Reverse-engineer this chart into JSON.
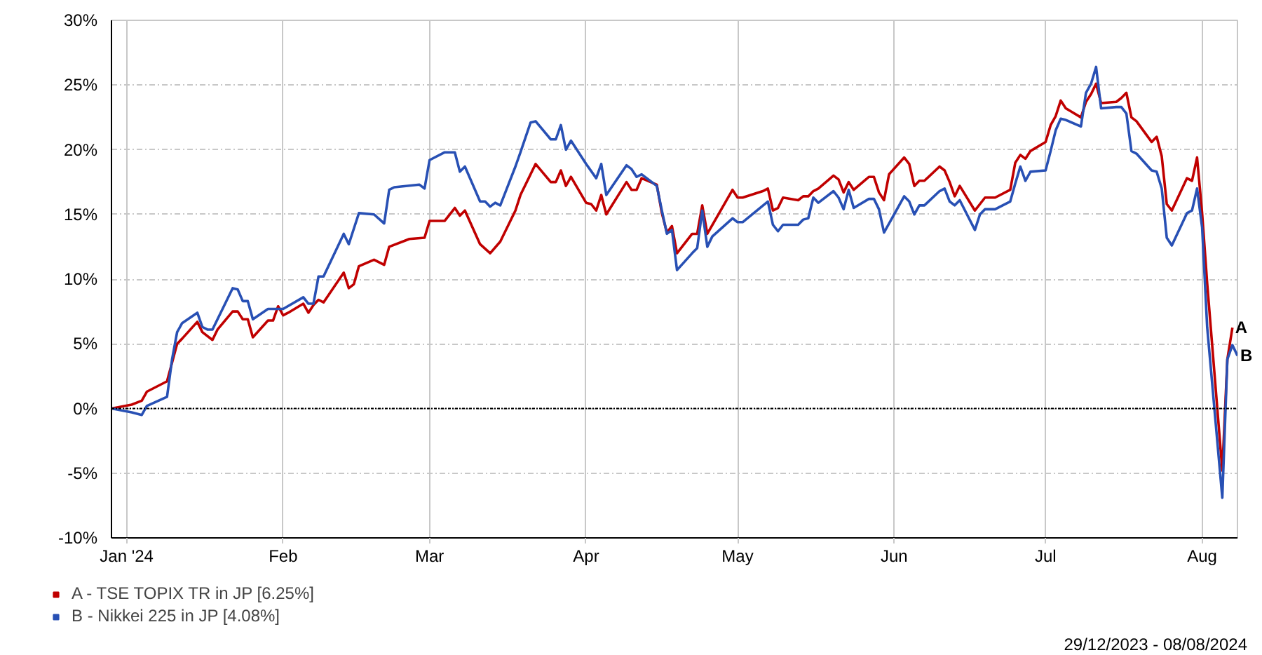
{
  "chart_data": {
    "type": "line",
    "xlim": [
      "2023-12-29",
      "2024-08-08"
    ],
    "ylim": [
      -10,
      30
    ],
    "xticks": [
      {
        "value": "2024-01-01",
        "label": "Jan '24"
      },
      {
        "value": "2024-02-01",
        "label": "Feb"
      },
      {
        "value": "2024-03-01",
        "label": "Mar"
      },
      {
        "value": "2024-04-01",
        "label": "Apr"
      },
      {
        "value": "2024-05-01",
        "label": "May"
      },
      {
        "value": "2024-06-01",
        "label": "Jun"
      },
      {
        "value": "2024-07-01",
        "label": "Jul"
      },
      {
        "value": "2024-08-01",
        "label": "Aug"
      }
    ],
    "yticks": [
      {
        "value": -10,
        "label": "-10%"
      },
      {
        "value": -5,
        "label": "-5%"
      },
      {
        "value": 0,
        "label": "0%"
      },
      {
        "value": 5,
        "label": "5%"
      },
      {
        "value": 10,
        "label": "10%"
      },
      {
        "value": 15,
        "label": "15%"
      },
      {
        "value": 20,
        "label": "20%"
      },
      {
        "value": 25,
        "label": "25%"
      },
      {
        "value": 30,
        "label": "30%"
      }
    ],
    "grid": true,
    "legend": "bottom left",
    "ref_lines": [
      {
        "axis": "y",
        "value": 0,
        "color": "#000000",
        "line_style": "dotted"
      }
    ],
    "annotations": [
      "29/12/2023 - 08/08/2024",
      {
        "text": "A",
        "x": "2024-08-07",
        "y": 6.25
      },
      {
        "text": "B",
        "x": "2024-08-08",
        "y": 4.08
      }
    ],
    "series": [
      {
        "name": "A - TSE TOPIX TR in JP [6.25%]",
        "color": "#c00000",
        "x": [
          "2023-12-29",
          "2024-01-02",
          "2024-01-04",
          "2024-01-05",
          "2024-01-09",
          "2024-01-11",
          "2024-01-12",
          "2024-01-15",
          "2024-01-16",
          "2024-01-18",
          "2024-01-19",
          "2024-01-22",
          "2024-01-23",
          "2024-01-24",
          "2024-01-25",
          "2024-01-26",
          "2024-01-29",
          "2024-01-30",
          "2024-01-31",
          "2024-02-01",
          "2024-02-02",
          "2024-02-05",
          "2024-02-06",
          "2024-02-07",
          "2024-02-08",
          "2024-02-09",
          "2024-02-13",
          "2024-02-14",
          "2024-02-15",
          "2024-02-16",
          "2024-02-19",
          "2024-02-21",
          "2024-02-22",
          "2024-02-26",
          "2024-02-29",
          "2024-03-01",
          "2024-03-04",
          "2024-03-06",
          "2024-03-07",
          "2024-03-08",
          "2024-03-11",
          "2024-03-13",
          "2024-03-15",
          "2024-03-18",
          "2024-03-19",
          "2024-03-21",
          "2024-03-22",
          "2024-03-25",
          "2024-03-26",
          "2024-03-27",
          "2024-03-28",
          "2024-03-29",
          "2024-04-01",
          "2024-04-02",
          "2024-04-03",
          "2024-04-04",
          "2024-04-05",
          "2024-04-09",
          "2024-04-10",
          "2024-04-11",
          "2024-04-12",
          "2024-04-15",
          "2024-04-16",
          "2024-04-17",
          "2024-04-18",
          "2024-04-19",
          "2024-04-22",
          "2024-04-23",
          "2024-04-24",
          "2024-04-25",
          "2024-04-30",
          "2024-05-01",
          "2024-05-02",
          "2024-05-06",
          "2024-05-07",
          "2024-05-08",
          "2024-05-09",
          "2024-05-10",
          "2024-05-13",
          "2024-05-14",
          "2024-05-15",
          "2024-05-16",
          "2024-05-17",
          "2024-05-20",
          "2024-05-21",
          "2024-05-22",
          "2024-05-23",
          "2024-05-24",
          "2024-05-27",
          "2024-05-28",
          "2024-05-29",
          "2024-05-30",
          "2024-05-31",
          "2024-06-03",
          "2024-06-04",
          "2024-06-05",
          "2024-06-06",
          "2024-06-07",
          "2024-06-10",
          "2024-06-11",
          "2024-06-12",
          "2024-06-13",
          "2024-06-14",
          "2024-06-17",
          "2024-06-18",
          "2024-06-19",
          "2024-06-21",
          "2024-06-24",
          "2024-06-25",
          "2024-06-26",
          "2024-06-27",
          "2024-06-28",
          "2024-07-01",
          "2024-07-02",
          "2024-07-03",
          "2024-07-04",
          "2024-07-05",
          "2024-07-08",
          "2024-07-09",
          "2024-07-10",
          "2024-07-11",
          "2024-07-12",
          "2024-07-15",
          "2024-07-16",
          "2024-07-17",
          "2024-07-18",
          "2024-07-19",
          "2024-07-22",
          "2024-07-23",
          "2024-07-24",
          "2024-07-25",
          "2024-07-26",
          "2024-07-29",
          "2024-07-30",
          "2024-07-31",
          "2024-08-01",
          "2024-08-02",
          "2024-08-05",
          "2024-08-06",
          "2024-08-07"
        ],
        "values": [
          0,
          0.3,
          0.6,
          1.3,
          2.1,
          5.0,
          5.4,
          6.7,
          5.9,
          5.3,
          6.1,
          7.5,
          7.5,
          6.9,
          6.9,
          5.5,
          6.8,
          6.8,
          7.9,
          7.2,
          7.4,
          8.1,
          7.4,
          8.0,
          8.4,
          8.2,
          10.5,
          9.3,
          9.6,
          11.0,
          11.5,
          11.1,
          12.5,
          13.1,
          13.2,
          14.5,
          14.5,
          15.5,
          14.9,
          15.3,
          12.7,
          12.0,
          12.9,
          15.3,
          16.5,
          18.1,
          18.9,
          17.5,
          17.5,
          18.4,
          17.2,
          17.9,
          15.9,
          15.8,
          15.3,
          16.5,
          15.0,
          17.5,
          16.9,
          16.9,
          17.8,
          17.3,
          15.1,
          13.6,
          14.1,
          12.0,
          13.5,
          13.5,
          15.7,
          13.5,
          16.9,
          16.3,
          16.3,
          16.8,
          17.0,
          15.3,
          15.5,
          16.3,
          16.1,
          16.4,
          16.4,
          16.8,
          17.0,
          18.0,
          17.7,
          16.7,
          17.5,
          16.9,
          17.9,
          17.9,
          16.7,
          16.1,
          18.1,
          19.4,
          18.9,
          17.2,
          17.6,
          17.6,
          18.7,
          18.4,
          17.5,
          16.4,
          17.2,
          15.3,
          15.8,
          16.3,
          16.3,
          16.9,
          19.0,
          19.6,
          19.3,
          19.9,
          20.6,
          21.9,
          22.6,
          23.8,
          23.2,
          22.5,
          23.7,
          24.3,
          25.1,
          23.6,
          23.7,
          24.0,
          24.4,
          22.5,
          22.2,
          20.6,
          21.0,
          19.5,
          15.8,
          15.3,
          17.8,
          17.6,
          19.4,
          15.1,
          9.7,
          -4.8,
          3.8,
          6.25
        ]
      },
      {
        "name": "B - Nikkei 225 in JP [4.08%]",
        "color": "#2850b4",
        "x": [
          "2023-12-29",
          "2024-01-02",
          "2024-01-04",
          "2024-01-05",
          "2024-01-09",
          "2024-01-10",
          "2024-01-11",
          "2024-01-12",
          "2024-01-15",
          "2024-01-16",
          "2024-01-17",
          "2024-01-18",
          "2024-01-22",
          "2024-01-23",
          "2024-01-24",
          "2024-01-25",
          "2024-01-26",
          "2024-01-29",
          "2024-01-31",
          "2024-02-01",
          "2024-02-05",
          "2024-02-06",
          "2024-02-07",
          "2024-02-08",
          "2024-02-09",
          "2024-02-13",
          "2024-02-14",
          "2024-02-16",
          "2024-02-19",
          "2024-02-21",
          "2024-02-22",
          "2024-02-23",
          "2024-02-28",
          "2024-02-29",
          "2024-03-01",
          "2024-03-04",
          "2024-03-06",
          "2024-03-07",
          "2024-03-08",
          "2024-03-11",
          "2024-03-12",
          "2024-03-13",
          "2024-03-14",
          "2024-03-15",
          "2024-03-18",
          "2024-03-19",
          "2024-03-21",
          "2024-03-22",
          "2024-03-25",
          "2024-03-26",
          "2024-03-27",
          "2024-03-28",
          "2024-03-29",
          "2024-04-01",
          "2024-04-03",
          "2024-04-04",
          "2024-04-05",
          "2024-04-09",
          "2024-04-10",
          "2024-04-11",
          "2024-04-12",
          "2024-04-15",
          "2024-04-16",
          "2024-04-17",
          "2024-04-18",
          "2024-04-19",
          "2024-04-22",
          "2024-04-23",
          "2024-04-24",
          "2024-04-25",
          "2024-04-26",
          "2024-04-30",
          "2024-05-01",
          "2024-05-02",
          "2024-05-07",
          "2024-05-08",
          "2024-05-09",
          "2024-05-10",
          "2024-05-13",
          "2024-05-14",
          "2024-05-15",
          "2024-05-16",
          "2024-05-17",
          "2024-05-20",
          "2024-05-21",
          "2024-05-22",
          "2024-05-23",
          "2024-05-24",
          "2024-05-27",
          "2024-05-28",
          "2024-05-29",
          "2024-05-30",
          "2024-06-03",
          "2024-06-04",
          "2024-06-05",
          "2024-06-06",
          "2024-06-07",
          "2024-06-10",
          "2024-06-11",
          "2024-06-12",
          "2024-06-13",
          "2024-06-14",
          "2024-06-17",
          "2024-06-18",
          "2024-06-19",
          "2024-06-21",
          "2024-06-24",
          "2024-06-25",
          "2024-06-26",
          "2024-06-27",
          "2024-06-28",
          "2024-07-01",
          "2024-07-02",
          "2024-07-03",
          "2024-07-04",
          "2024-07-05",
          "2024-07-08",
          "2024-07-09",
          "2024-07-10",
          "2024-07-11",
          "2024-07-12",
          "2024-07-15",
          "2024-07-16",
          "2024-07-17",
          "2024-07-18",
          "2024-07-19",
          "2024-07-22",
          "2024-07-23",
          "2024-07-24",
          "2024-07-25",
          "2024-07-26",
          "2024-07-29",
          "2024-07-30",
          "2024-07-31",
          "2024-08-01",
          "2024-08-02",
          "2024-08-05",
          "2024-08-06",
          "2024-08-07",
          "2024-08-08"
        ],
        "values": [
          0,
          -0.3,
          -0.5,
          0.2,
          0.9,
          3.8,
          5.9,
          6.6,
          7.4,
          6.3,
          6.1,
          6.1,
          9.3,
          9.2,
          8.3,
          8.3,
          6.9,
          7.7,
          7.7,
          7.7,
          8.6,
          8.1,
          8.1,
          10.2,
          10.2,
          13.5,
          12.7,
          15.1,
          15.0,
          14.3,
          16.9,
          17.1,
          17.3,
          17.0,
          19.2,
          19.8,
          19.8,
          18.3,
          18.7,
          16.0,
          16.0,
          15.6,
          15.9,
          15.7,
          18.7,
          19.8,
          22.1,
          22.2,
          20.8,
          20.8,
          21.9,
          20.0,
          20.7,
          18.9,
          17.8,
          18.9,
          16.5,
          18.8,
          18.5,
          17.9,
          18.1,
          17.2,
          15.3,
          13.5,
          13.8,
          10.7,
          12.0,
          12.4,
          15.3,
          12.5,
          13.3,
          14.7,
          14.4,
          14.4,
          16.0,
          14.2,
          13.7,
          14.2,
          14.2,
          14.6,
          14.7,
          16.3,
          15.9,
          16.8,
          16.3,
          15.4,
          16.9,
          15.5,
          16.2,
          16.2,
          15.4,
          13.6,
          16.4,
          16.0,
          15.0,
          15.7,
          15.7,
          16.8,
          17.0,
          16.0,
          15.7,
          16.1,
          13.8,
          15.0,
          15.4,
          15.4,
          16.0,
          17.4,
          18.7,
          17.6,
          18.3,
          18.4,
          19.9,
          21.5,
          22.4,
          22.3,
          21.8,
          24.4,
          25.1,
          26.4,
          23.2,
          23.3,
          23.3,
          22.8,
          19.9,
          19.7,
          18.4,
          18.3,
          17.0,
          13.2,
          12.6,
          15.1,
          15.3,
          17.0,
          14.0,
          6.3,
          -6.9,
          3.8,
          4.9,
          4.08
        ]
      }
    ]
  }
}
